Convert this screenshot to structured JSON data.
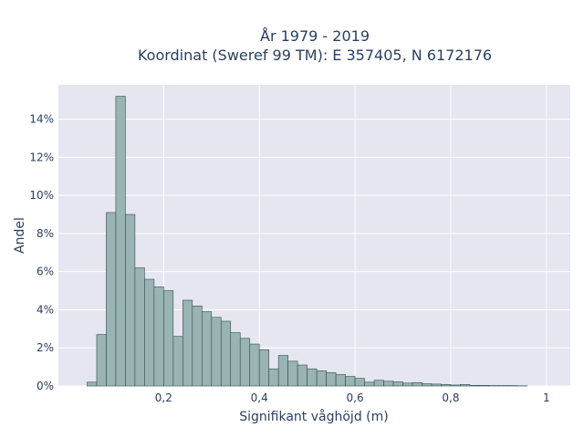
{
  "chart_data": {
    "type": "bar",
    "title_line1": "År 1979 - 2019",
    "title_line2": "Koordinat (Sweref 99 TM): E 357405, N 6172176",
    "xlabel": "Signifikant våghöjd (m)",
    "ylabel": "Andel",
    "xlim": [
      -0.02,
      1.05
    ],
    "ylim": [
      0,
      0.158
    ],
    "xticks": [
      0.2,
      0.4,
      0.6,
      0.8,
      1.0
    ],
    "xtick_labels": [
      "0,2",
      "0,4",
      "0,6",
      "0,8",
      "1"
    ],
    "yticks": [
      0,
      0.02,
      0.04,
      0.06,
      0.08,
      0.1,
      0.12,
      0.14
    ],
    "ytick_labels": [
      "0%",
      "2%",
      "4%",
      "6%",
      "8%",
      "10%",
      "12%",
      "14%"
    ],
    "bin_width": 0.02,
    "bin_starts": [
      0.04,
      0.06,
      0.08,
      0.1,
      0.12,
      0.14,
      0.16,
      0.18,
      0.2,
      0.22,
      0.24,
      0.26,
      0.28,
      0.3,
      0.32,
      0.34,
      0.36,
      0.38,
      0.4,
      0.42,
      0.44,
      0.46,
      0.48,
      0.5,
      0.52,
      0.54,
      0.56,
      0.58,
      0.6,
      0.62,
      0.64,
      0.66,
      0.68,
      0.7,
      0.72,
      0.74,
      0.76,
      0.78,
      0.8,
      0.82,
      0.84,
      0.86,
      0.88,
      0.9,
      0.92,
      0.94
    ],
    "values": [
      0.002,
      0.027,
      0.091,
      0.152,
      0.09,
      0.062,
      0.056,
      0.052,
      0.05,
      0.026,
      0.045,
      0.042,
      0.039,
      0.036,
      0.034,
      0.028,
      0.025,
      0.022,
      0.019,
      0.009,
      0.016,
      0.013,
      0.011,
      0.009,
      0.008,
      0.007,
      0.006,
      0.005,
      0.004,
      0.002,
      0.003,
      0.0025,
      0.0022,
      0.0015,
      0.0018,
      0.0012,
      0.001,
      0.0008,
      0.0005,
      0.0008,
      0.0003,
      0.0003,
      0.0002,
      0.0002,
      0.0002,
      0.0001
    ],
    "bar_color": "#9ab3b3",
    "bar_edge_color": "#2f4f4f",
    "plot_bg": "#e5e6ef",
    "grid": true,
    "grid_color": "#ffffff"
  }
}
